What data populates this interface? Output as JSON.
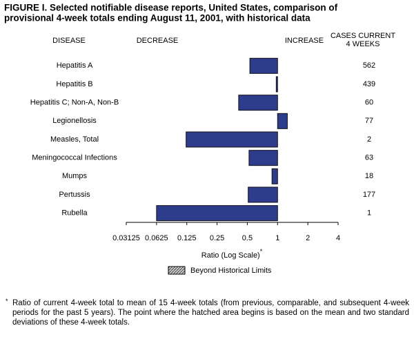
{
  "chart_data": {
    "type": "hbar",
    "title": [
      "FIGURE I. Selected notifiable disease reports, United States, comparison of",
      "provisional 4-week totals ending August 11, 2001, with historical data"
    ],
    "column_headers": {
      "disease": "DISEASE",
      "decrease": "DECREASE",
      "increase": "INCREASE",
      "cases": [
        "CASES CURRENT",
        "4 WEEKS"
      ]
    },
    "categories": [
      "Hepatitis A",
      "Hepatitis B",
      "Hepatitis C; Non-A, Non-B",
      "Legionellosis",
      "Measles, Total",
      "Meningococcal Infections",
      "Mumps",
      "Pertussis",
      "Rubella"
    ],
    "values": [
      0.53,
      0.97,
      0.41,
      1.25,
      0.123,
      0.52,
      0.88,
      0.51,
      0.0625
    ],
    "cases": [
      562,
      439,
      60,
      77,
      2,
      63,
      18,
      177,
      1
    ],
    "color": "#2e3c8c",
    "xscale": "log",
    "xlim": [
      0.03125,
      4
    ],
    "xticks": [
      0.03125,
      0.0625,
      0.125,
      0.25,
      0.5,
      1,
      2,
      4
    ],
    "xlabel": "Ratio (Log Scale)",
    "footnote_marker": "*",
    "legend_label": "Beyond Historical Limits",
    "footnote": "Ratio of current 4-week total to mean of 15 4-week totals (from previous, comparable, and subsequent 4-week periods for the past 5 years). The point where the hatched area begins is based on the mean and two standard deviations of these 4-week totals."
  }
}
